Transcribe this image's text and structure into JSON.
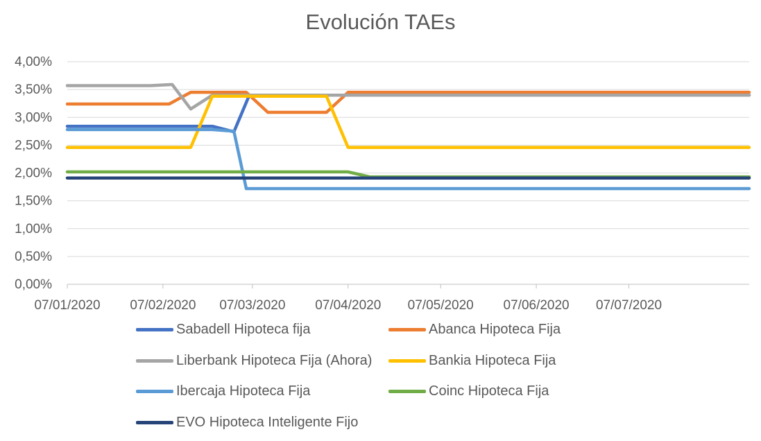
{
  "chart_data": {
    "type": "line",
    "title": "Evolución TAEs",
    "xlabel": "",
    "ylabel": "",
    "x_ticks": [
      "07/01/2020",
      "07/02/2020",
      "07/03/2020",
      "07/04/2020",
      "07/05/2020",
      "07/06/2020",
      "07/07/2020"
    ],
    "x_range": [
      "2020-01-07",
      "2020-08-15"
    ],
    "y_ticks": [
      "0,00%",
      "0,50%",
      "1,00%",
      "1,50%",
      "2,00%",
      "2,50%",
      "3,00%",
      "3,50%",
      "4,00%"
    ],
    "ylim": [
      0,
      4
    ],
    "grid": "horizontal",
    "legend_position": "bottom",
    "series": [
      {
        "name": "Sabadell Hipoteca fija",
        "color": "#4472c4",
        "points": [
          [
            "2020-01-07",
            2.84
          ],
          [
            "2020-02-23",
            2.84
          ],
          [
            "2020-03-01",
            2.74
          ],
          [
            "2020-03-06",
            3.4
          ],
          [
            "2020-08-15",
            3.4
          ]
        ]
      },
      {
        "name": "Abanca Hipoteca Fija",
        "color": "#ed7d31",
        "points": [
          [
            "2020-01-07",
            3.24
          ],
          [
            "2020-02-09",
            3.24
          ],
          [
            "2020-02-16",
            3.45
          ],
          [
            "2020-03-05",
            3.45
          ],
          [
            "2020-03-12",
            3.09
          ],
          [
            "2020-03-31",
            3.09
          ],
          [
            "2020-04-07",
            3.45
          ],
          [
            "2020-08-15",
            3.45
          ]
        ]
      },
      {
        "name": "Liberbank Hipoteca Fija (Ahora)",
        "color": "#a5a5a5",
        "points": [
          [
            "2020-01-07",
            3.57
          ],
          [
            "2020-02-03",
            3.57
          ],
          [
            "2020-02-10",
            3.59
          ],
          [
            "2020-02-16",
            3.15
          ],
          [
            "2020-02-23",
            3.4
          ],
          [
            "2020-08-15",
            3.4
          ]
        ]
      },
      {
        "name": "Bankia Hipoteca Fija",
        "color": "#ffc000",
        "points": [
          [
            "2020-01-07",
            2.46
          ],
          [
            "2020-02-16",
            2.46
          ],
          [
            "2020-02-23",
            3.38
          ],
          [
            "2020-03-31",
            3.38
          ],
          [
            "2020-04-07",
            2.46
          ],
          [
            "2020-08-15",
            2.46
          ]
        ]
      },
      {
        "name": "Ibercaja Hipoteca Fija",
        "color": "#5b9bd5",
        "points": [
          [
            "2020-01-07",
            2.78
          ],
          [
            "2020-02-23",
            2.78
          ],
          [
            "2020-03-01",
            2.75
          ],
          [
            "2020-03-05",
            1.72
          ],
          [
            "2020-08-15",
            1.72
          ]
        ]
      },
      {
        "name": "Coinc Hipoteca Fija",
        "color": "#70ad47",
        "points": [
          [
            "2020-01-07",
            2.02
          ],
          [
            "2020-04-07",
            2.02
          ],
          [
            "2020-04-14",
            1.93
          ],
          [
            "2020-08-15",
            1.93
          ]
        ]
      },
      {
        "name": "EVO Hipoteca Inteligente Fijo",
        "color": "#264478",
        "points": [
          [
            "2020-01-07",
            1.91
          ],
          [
            "2020-08-15",
            1.91
          ]
        ]
      }
    ]
  }
}
